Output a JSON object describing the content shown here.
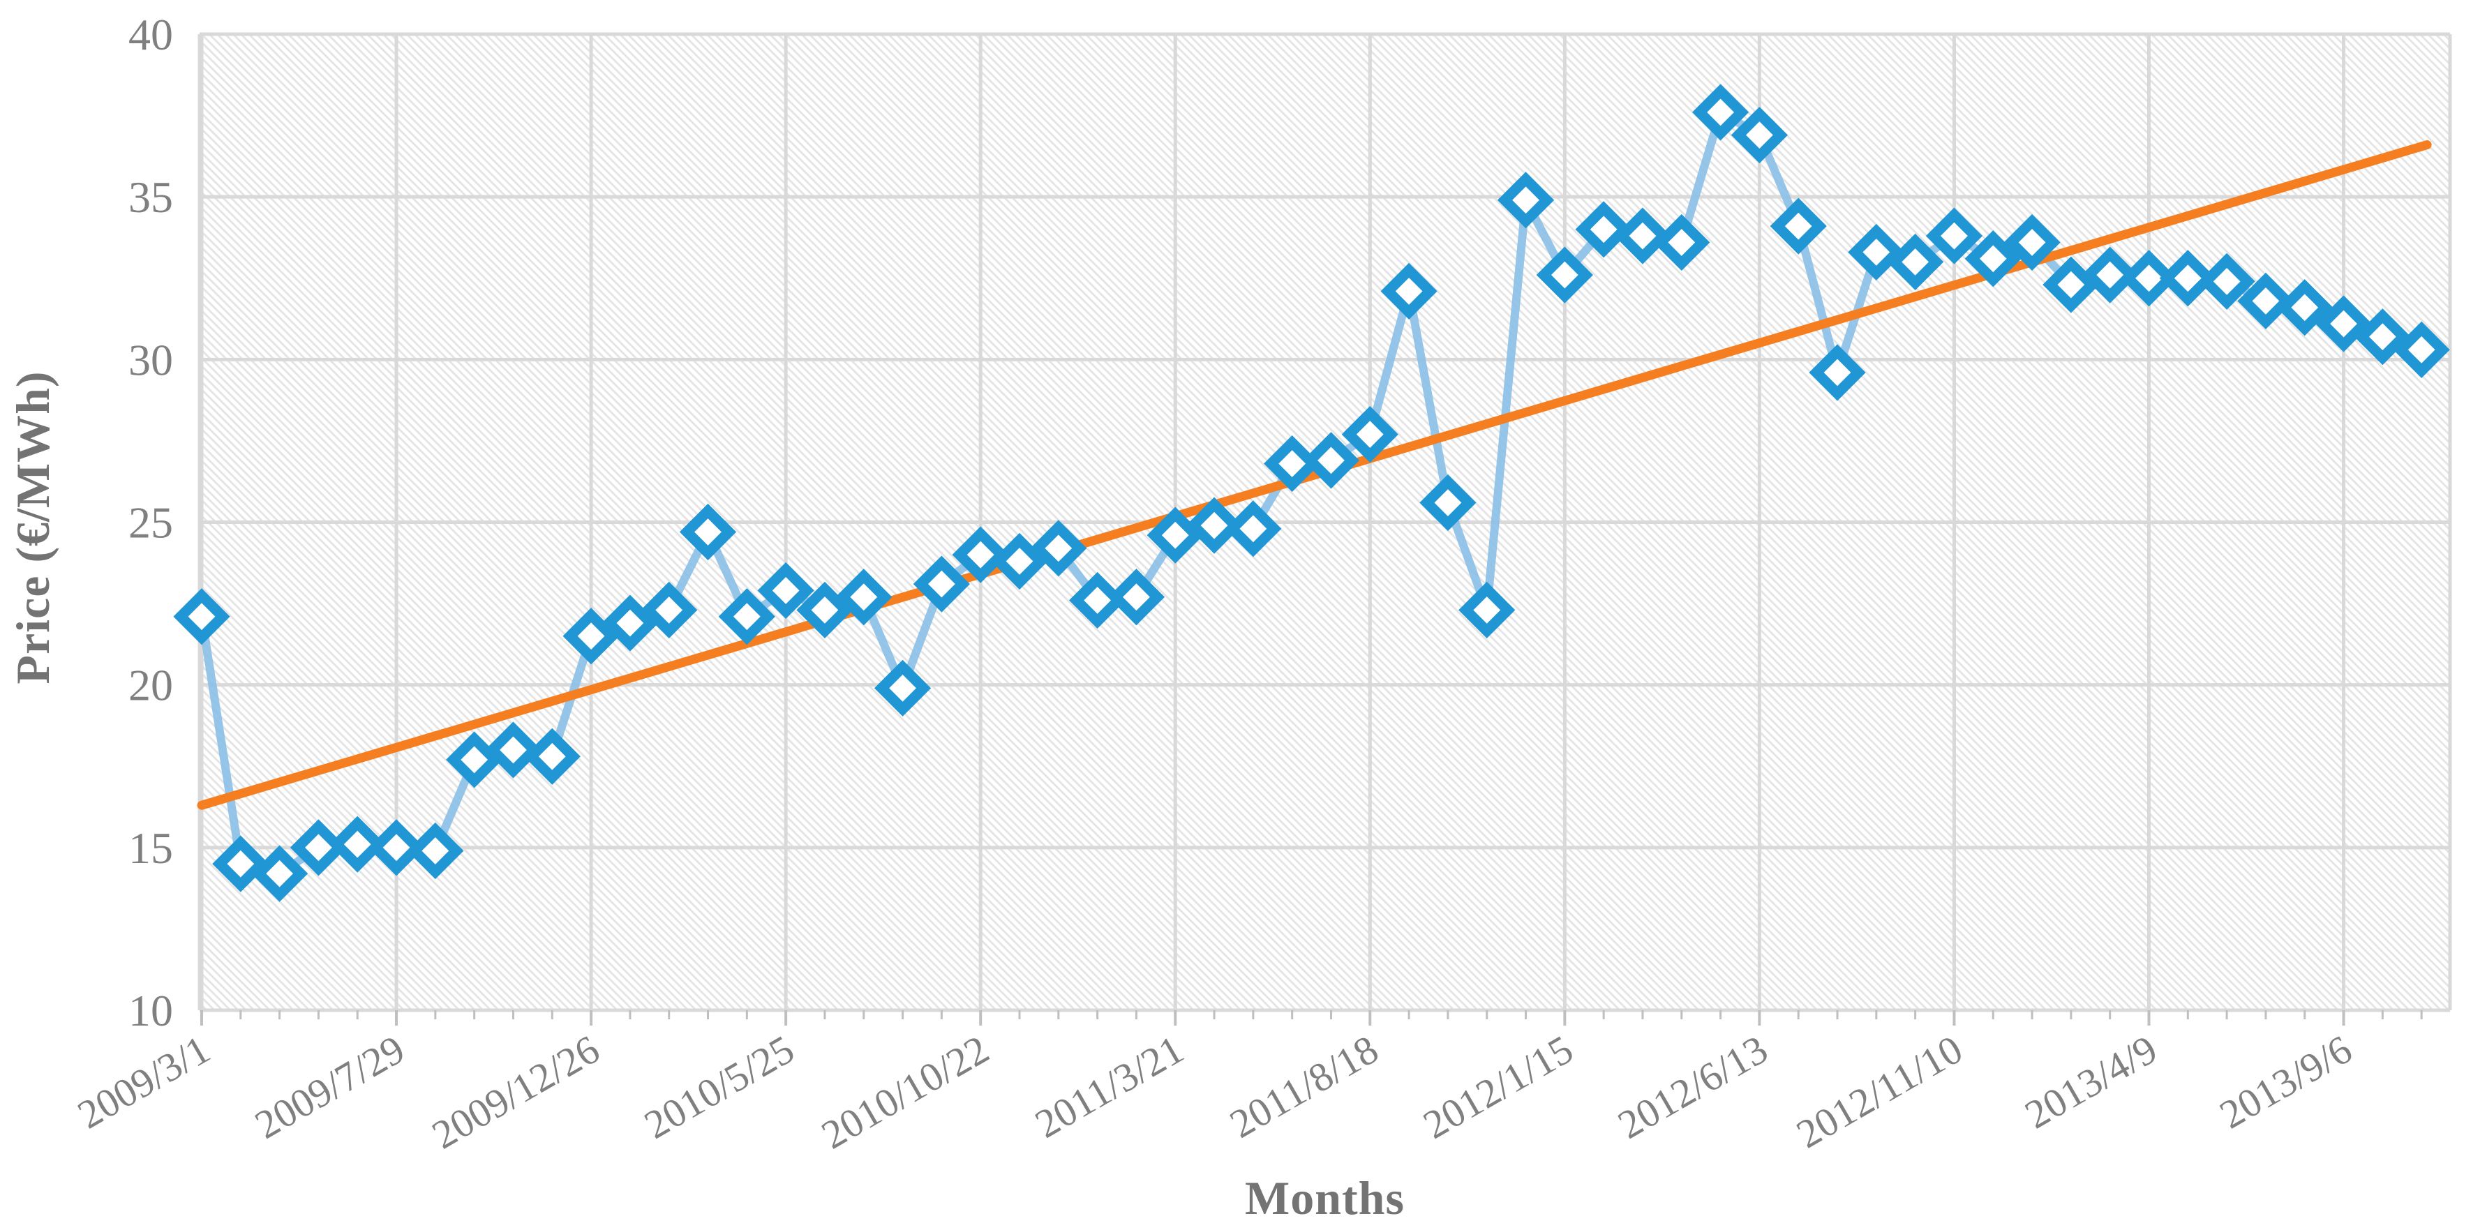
{
  "chart_data": {
    "type": "line",
    "title": "",
    "xlabel": "Months",
    "ylabel": "Price (€/MWh)",
    "ylim": [
      10,
      40
    ],
    "yticks": [
      10,
      15,
      20,
      25,
      30,
      35,
      40
    ],
    "grid": true,
    "plot_background": "diagonal-hatch",
    "legend_position": "none",
    "x_tick_labels": [
      "2009/3/1",
      "2009/7/29",
      "2009/12/26",
      "2010/5/25",
      "2010/10/22",
      "2011/3/21",
      "2011/8/18",
      "2012/1/15",
      "2012/6/13",
      "2012/11/10",
      "2013/4/9",
      "2013/9/6"
    ],
    "x": [
      "2009/3/1",
      "2009/3/31",
      "2009/4/30",
      "2009/5/30",
      "2009/6/29",
      "2009/7/29",
      "2009/8/28",
      "2009/9/27",
      "2009/10/27",
      "2009/11/26",
      "2009/12/26",
      "2010/1/25",
      "2010/2/24",
      "2010/3/26",
      "2010/4/25",
      "2010/5/25",
      "2010/6/24",
      "2010/7/24",
      "2010/8/23",
      "2010/9/22",
      "2010/10/22",
      "2010/11/21",
      "2010/12/21",
      "2011/1/20",
      "2011/2/19",
      "2011/3/21",
      "2011/4/20",
      "2011/5/20",
      "2011/6/19",
      "2011/7/19",
      "2011/8/18",
      "2011/9/17",
      "2011/10/17",
      "2011/11/16",
      "2011/12/16",
      "2012/1/15",
      "2012/2/14",
      "2012/3/15",
      "2012/4/14",
      "2012/5/14",
      "2012/6/13",
      "2012/7/13",
      "2012/8/12",
      "2012/9/11",
      "2012/10/11",
      "2012/11/10",
      "2012/12/10",
      "2013/1/9",
      "2013/2/8",
      "2013/3/10",
      "2013/4/9",
      "2013/5/9",
      "2013/6/8",
      "2013/7/8",
      "2013/8/7",
      "2013/9/6",
      "2013/10/6",
      "2013/11/5"
    ],
    "series": [
      {
        "name": "Price",
        "style": "line-with-diamond-markers",
        "marker": "diamond",
        "marker_color": "#2196d5",
        "marker_fill": "#ffffff",
        "line_color": "#8abfe5",
        "values": [
          22.1,
          14.5,
          14.2,
          15.0,
          15.1,
          15.0,
          14.9,
          17.7,
          18.0,
          17.8,
          21.5,
          21.9,
          22.3,
          24.7,
          22.1,
          22.9,
          22.3,
          22.7,
          19.9,
          23.1,
          24.0,
          23.8,
          24.2,
          22.6,
          22.7,
          24.6,
          24.9,
          24.8,
          26.8,
          26.9,
          27.7,
          32.1,
          25.6,
          22.3,
          34.9,
          32.6,
          34.0,
          33.8,
          33.6,
          37.6,
          36.9,
          34.1,
          29.6,
          33.3,
          33.0,
          33.8,
          33.1,
          33.6,
          32.3,
          32.6,
          32.5,
          32.5,
          32.4,
          31.8,
          31.6,
          31.1,
          30.7,
          30.3
        ]
      },
      {
        "name": "Linear trend",
        "style": "straight-trendline",
        "color": "#f57e20",
        "start_value": 16.3,
        "end_value": 36.6
      }
    ],
    "colors": {
      "gridline": "#d9d9d9",
      "hatch": "#e4e4e4",
      "tick_label": "#7f7f7f",
      "axis_title": "#737373",
      "minor_tick": "#bfbfbf"
    }
  }
}
